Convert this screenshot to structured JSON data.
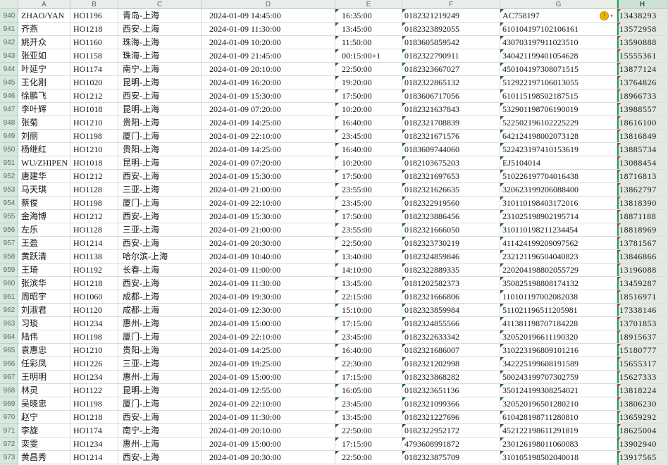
{
  "selection": {
    "selected_column": "H",
    "accent_color": "#1fa15e"
  },
  "columns": {
    "letters": [
      "A",
      "B",
      "C",
      "D",
      "E",
      "F",
      "G",
      "H"
    ]
  },
  "icons": {
    "error_options_badge": "!",
    "error_options_caret": "▾",
    "text_as_number_triangle": "green-triangle",
    "text_as_number_triangle_selected": "red-triangle"
  },
  "sheet": {
    "first_row_number": 940,
    "rows": [
      {
        "n": "940",
        "a": "ZHAO/YAN",
        "b": "HO1196",
        "c": "青岛-上海",
        "d": "2024-01-09 14:45:00",
        "e": "16:35:00",
        "f": "0182321219249",
        "g": "AC758197",
        "h": "13438293",
        "warning": true
      },
      {
        "n": "941",
        "a": "齐燕",
        "b": "HO1218",
        "c": "西安-上海",
        "d": "2024-01-09 11:30:00",
        "e": "13:45:00",
        "f": "0182323892055",
        "g": "610104197102106161",
        "h": "13572958"
      },
      {
        "n": "942",
        "a": "姚开众",
        "b": "HO1160",
        "c": "珠海-上海",
        "d": "2024-01-09 10:20:00",
        "e": "11:50:00",
        "f": "0183605859542",
        "g": "430703197911023510",
        "h": "13590888"
      },
      {
        "n": "943",
        "a": "张亚如",
        "b": "HO1158",
        "c": "珠海-上海",
        "d": "2024-01-09 21:45:00",
        "e": "00:15:00+1",
        "f": "0182322790911",
        "g": "340421199401054628",
        "h": "15555361"
      },
      {
        "n": "944",
        "a": "叶延宁",
        "b": "HO1174",
        "c": "南宁-上海",
        "d": "2024-01-09 20:10:00",
        "e": "22:50:00",
        "f": "0182323667027",
        "g": "450104197308071515",
        "h": "13877124"
      },
      {
        "n": "945",
        "a": "王化刚",
        "b": "HO1020",
        "c": "昆明-上海",
        "d": "2024-01-09 16:20:00",
        "e": "19:20:00",
        "f": "0182322865132",
        "g": "512922197106013055",
        "h": "13764826"
      },
      {
        "n": "946",
        "a": "徐鹏飞",
        "b": "HO1212",
        "c": "西安-上海",
        "d": "2024-01-09 15:30:00",
        "e": "17:50:00",
        "f": "0183606717056",
        "g": "610115198502187515",
        "h": "18966733"
      },
      {
        "n": "947",
        "a": "李叶辉",
        "b": "HO1018",
        "c": "昆明-上海",
        "d": "2024-01-09 07:20:00",
        "e": "10:20:00",
        "f": "0182321637843",
        "g": "532901198706190019",
        "h": "13988557"
      },
      {
        "n": "948",
        "a": "张菊",
        "b": "HO1210",
        "c": "贵阳-上海",
        "d": "2024-01-09 14:25:00",
        "e": "16:40:00",
        "f": "0182321708839",
        "g": "522502196102225229",
        "h": "18616100"
      },
      {
        "n": "949",
        "a": "刘丽",
        "b": "HO1198",
        "c": "厦门-上海",
        "d": "2024-01-09 22:10:00",
        "e": "23:45:00",
        "f": "0182321671576",
        "g": "642124198002073128",
        "h": "13816849"
      },
      {
        "n": "950",
        "a": "杨继红",
        "b": "HO1210",
        "c": "贵阳-上海",
        "d": "2024-01-09 14:25:00",
        "e": "16:40:00",
        "f": "0183609744060",
        "g": "522423197410153619",
        "h": "13885734"
      },
      {
        "n": "951",
        "a": "WU/ZHIPEN",
        "b": "HO1018",
        "c": "昆明-上海",
        "d": "2024-01-09 07:20:00",
        "e": "10:20:00",
        "f": "0182103675203",
        "g": "EJ5104014",
        "h": "13088454"
      },
      {
        "n": "952",
        "a": "唐建华",
        "b": "HO1212",
        "c": "西安-上海",
        "d": "2024-01-09 15:30:00",
        "e": "17:50:00",
        "f": "0182321697653",
        "g": "510226197704016438",
        "h": "18716813"
      },
      {
        "n": "953",
        "a": "马天琪",
        "b": "HO1128",
        "c": "三亚-上海",
        "d": "2024-01-09 21:00:00",
        "e": "23:55:00",
        "f": "0182321626635",
        "g": "320623199206088400",
        "h": "13862797"
      },
      {
        "n": "954",
        "a": "蔡俊",
        "b": "HO1198",
        "c": "厦门-上海",
        "d": "2024-01-09 22:10:00",
        "e": "23:45:00",
        "f": "0182322919560",
        "g": "310110198403172016",
        "h": "13818390"
      },
      {
        "n": "955",
        "a": "金海博",
        "b": "HO1212",
        "c": "西安-上海",
        "d": "2024-01-09 15:30:00",
        "e": "17:50:00",
        "f": "0182323886456",
        "g": "231025198902195714",
        "h": "18871188"
      },
      {
        "n": "956",
        "a": "左乐",
        "b": "HO1128",
        "c": "三亚-上海",
        "d": "2024-01-09 21:00:00",
        "e": "23:55:00",
        "f": "0182321666050",
        "g": "310110198211234454",
        "h": "18818969"
      },
      {
        "n": "957",
        "a": "王盈",
        "b": "HO1214",
        "c": "西安-上海",
        "d": "2024-01-09 20:30:00",
        "e": "22:50:00",
        "f": "0182323730219",
        "g": "411424199209097562",
        "h": "13781567"
      },
      {
        "n": "958",
        "a": "黄跃清",
        "b": "HO1138",
        "c": "哈尔滨-上海",
        "d": "2024-01-09 10:40:00",
        "e": "13:40:00",
        "f": "0182324859846",
        "g": "232121196504040823",
        "h": "13846866"
      },
      {
        "n": "959",
        "a": "王琦",
        "b": "HO1192",
        "c": "长春-上海",
        "d": "2024-01-09 11:00:00",
        "e": "14:10:00",
        "f": "0182322889335",
        "g": "220204198802055729",
        "h": "13196088"
      },
      {
        "n": "960",
        "a": "张滨华",
        "b": "HO1218",
        "c": "西安-上海",
        "d": "2024-01-09 11:30:00",
        "e": "13:45:00",
        "f": "0181202582373",
        "g": "350825198808174132",
        "h": "13459287"
      },
      {
        "n": "961",
        "a": "周昭宇",
        "b": "HO1060",
        "c": "成都-上海",
        "d": "2024-01-09 19:30:00",
        "e": "22:15:00",
        "f": "0182321666806",
        "g": "110101197002082038",
        "h": "18516971"
      },
      {
        "n": "962",
        "a": "刘淑君",
        "b": "HO1120",
        "c": "成都-上海",
        "d": "2024-01-09 12:30:00",
        "e": "15:10:00",
        "f": "0182323859984",
        "g": "511021196511205981",
        "h": "17338146"
      },
      {
        "n": "963",
        "a": "习琰",
        "b": "HO1234",
        "c": "惠州-上海",
        "d": "2024-01-09 15:00:00",
        "e": "17:15:00",
        "f": "0182324855566",
        "g": "411381198707184228",
        "h": "13701853"
      },
      {
        "n": "964",
        "a": "陆伟",
        "b": "HO1198",
        "c": "厦门-上海",
        "d": "2024-01-09 22:10:00",
        "e": "23:45:00",
        "f": "0182322633342",
        "g": "320520196611190320",
        "h": "18915637"
      },
      {
        "n": "965",
        "a": "袁惠忠",
        "b": "HO1210",
        "c": "贵阳-上海",
        "d": "2024-01-09 14:25:00",
        "e": "16:40:00",
        "f": "0182321686007",
        "g": "310223196809101216",
        "h": "15180777"
      },
      {
        "n": "966",
        "a": "任彩凤",
        "b": "HO1226",
        "c": "三亚-上海",
        "d": "2024-01-09 19:25:00",
        "e": "22:30:00",
        "f": "0182321202998",
        "g": "342225199608191589",
        "h": "15655317"
      },
      {
        "n": "967",
        "a": "王明明",
        "b": "HO1234",
        "c": "惠州-上海",
        "d": "2024-01-09 15:00:00",
        "e": "17:15:00",
        "f": "0182323868282",
        "g": "500243199707302759",
        "h": "15627333"
      },
      {
        "n": "968",
        "a": "林灵",
        "b": "HO1122",
        "c": "昆明-上海",
        "d": "2024-01-09 12:55:00",
        "e": "16:05:00",
        "f": "0182323651136",
        "g": "350124199308254021",
        "h": "13818224"
      },
      {
        "n": "969",
        "a": "吴晓忠",
        "b": "HO1198",
        "c": "厦门-上海",
        "d": "2024-01-09 22:10:00",
        "e": "23:45:00",
        "f": "0182321099366",
        "g": "320520196501280210",
        "h": "13806230"
      },
      {
        "n": "970",
        "a": "赵宁",
        "b": "HO1218",
        "c": "西安-上海",
        "d": "2024-01-09 11:30:00",
        "e": "13:45:00",
        "f": "0182321227696",
        "g": "610428198711280810",
        "h": "13659292"
      },
      {
        "n": "971",
        "a": "李旋",
        "b": "HO1174",
        "c": "南宁-上海",
        "d": "2024-01-09 20:10:00",
        "e": "22:50:00",
        "f": "0182322952172",
        "g": "452122198611291819",
        "h": "18625004"
      },
      {
        "n": "972",
        "a": "栾雯",
        "b": "HO1234",
        "c": "惠州-上海",
        "d": "2024-01-09 15:00:00",
        "e": "17:15:00",
        "f": "4793608991872",
        "g": "230126198011060083",
        "h": "13902940"
      },
      {
        "n": "973",
        "a": "黄昌秀",
        "b": "HO1214",
        "c": "西安-上海",
        "d": "2024-01-09 20:30:00",
        "e": "22:50:00",
        "f": "0182323875709",
        "g": "310105198502040018",
        "h": "13917565"
      },
      {
        "n": "974",
        "a": "",
        "b": "",
        "c": "",
        "d": "",
        "e": "",
        "f": "",
        "g": "",
        "h": "",
        "partial": true
      }
    ]
  }
}
